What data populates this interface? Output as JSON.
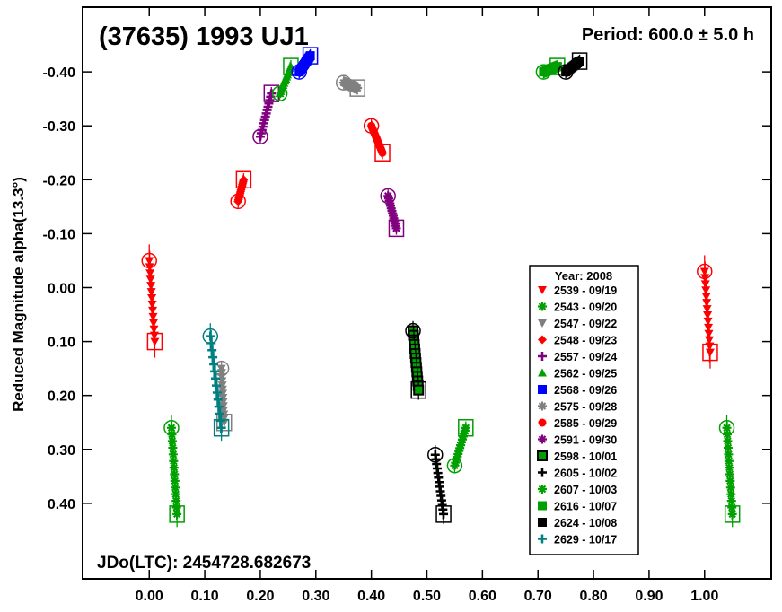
{
  "chart_data": {
    "type": "scatter",
    "title": "(37635) 1993 UJ1",
    "period_label": "Period: 600.0 ± 5.0 h",
    "epoch_label": "JDo(LTC): 2454728.682673",
    "ylabel": "Reduced Magnitude alpha(13.3°)",
    "xlabel": "",
    "xlim": [
      -0.12,
      1.12
    ],
    "ylim": [
      -0.52,
      0.54
    ],
    "y_inverted": true,
    "grid": false,
    "legend_position": "bottom-right",
    "legend_title": "Year: 2008",
    "x_ticks": [
      {
        "v": 0.0,
        "label": "0.00"
      },
      {
        "v": 0.1,
        "label": "0.10"
      },
      {
        "v": 0.2,
        "label": "0.20"
      },
      {
        "v": 0.3,
        "label": "0.30"
      },
      {
        "v": 0.4,
        "label": "0.40"
      },
      {
        "v": 0.5,
        "label": "0.50"
      },
      {
        "v": 0.6,
        "label": "0.60"
      },
      {
        "v": 0.7,
        "label": "0.70"
      },
      {
        "v": 0.8,
        "label": "0.80"
      },
      {
        "v": 0.9,
        "label": "0.90"
      },
      {
        "v": 1.0,
        "label": "1.00"
      }
    ],
    "y_ticks": [
      {
        "v": -0.4,
        "label": "-0.40"
      },
      {
        "v": -0.3,
        "label": "-0.30"
      },
      {
        "v": -0.2,
        "label": "-0.20"
      },
      {
        "v": -0.1,
        "label": "-0.10"
      },
      {
        "v": 0.0,
        "label": "0.00"
      },
      {
        "v": 0.1,
        "label": "0.10"
      },
      {
        "v": 0.2,
        "label": "0.20"
      },
      {
        "v": 0.3,
        "label": "0.30"
      },
      {
        "v": 0.4,
        "label": "0.40"
      }
    ],
    "series": [
      {
        "name": "2539 - 09/19",
        "color": "#ff0000",
        "marker": "triangle-down",
        "x": [
          0.0,
          0.01,
          1.0,
          1.01
        ],
        "y": [
          -0.05,
          0.1,
          -0.03,
          0.12
        ],
        "spread": 0.05
      },
      {
        "name": "2543 - 09/20",
        "color": "#00a000",
        "marker": "asterisk",
        "x": [
          0.04,
          0.05,
          1.04,
          1.05
        ],
        "y": [
          0.26,
          0.42,
          0.26,
          0.42
        ],
        "spread": 0.04
      },
      {
        "name": "2547 - 09/22",
        "color": "#808080",
        "marker": "triangle-down",
        "x": [
          0.13,
          0.135
        ],
        "y": [
          0.15,
          0.25
        ],
        "spread": 0.02
      },
      {
        "name": "2548 - 09/23",
        "color": "#ff0000",
        "marker": "diamond",
        "x": [
          0.16,
          0.17
        ],
        "y": [
          -0.16,
          -0.2
        ],
        "spread": 0.02
      },
      {
        "name": "2557 - 09/24",
        "color": "#800080",
        "marker": "plus",
        "x": [
          0.2,
          0.22
        ],
        "y": [
          -0.28,
          -0.36
        ],
        "spread": 0.02
      },
      {
        "name": "2562 - 09/25",
        "color": "#00a000",
        "marker": "triangle-up",
        "x": [
          0.235,
          0.255
        ],
        "y": [
          -0.36,
          -0.41
        ],
        "spread": 0.02
      },
      {
        "name": "2568 - 09/26",
        "color": "#0000ff",
        "marker": "square",
        "x": [
          0.27,
          0.29
        ],
        "y": [
          -0.4,
          -0.43
        ],
        "spread": 0.02
      },
      {
        "name": "2575 - 09/28",
        "color": "#808080",
        "marker": "asterisk",
        "x": [
          0.35,
          0.375
        ],
        "y": [
          -0.38,
          -0.37
        ],
        "spread": 0.02
      },
      {
        "name": "2585 - 09/29",
        "color": "#ff0000",
        "marker": "circle",
        "x": [
          0.4,
          0.42
        ],
        "y": [
          -0.3,
          -0.25
        ],
        "spread": 0.02
      },
      {
        "name": "2591 - 09/30",
        "color": "#800080",
        "marker": "asterisk",
        "x": [
          0.43,
          0.445
        ],
        "y": [
          -0.17,
          -0.11
        ],
        "spread": 0.02
      },
      {
        "name": "2598 - 10/01",
        "color": "#000000",
        "marker": "filled-square-green",
        "x": [
          0.475,
          0.485
        ],
        "y": [
          0.08,
          0.19
        ],
        "spread": 0.03
      },
      {
        "name": "2605 - 10/02",
        "color": "#000000",
        "marker": "plus",
        "x": [
          0.515,
          0.53
        ],
        "y": [
          0.31,
          0.42
        ],
        "spread": 0.03
      },
      {
        "name": "2607 - 10/03",
        "color": "#00a000",
        "marker": "asterisk",
        "x": [
          0.55,
          0.57
        ],
        "y": [
          0.33,
          0.26
        ],
        "spread": 0.02
      },
      {
        "name": "2616 - 10/07",
        "color": "#00a000",
        "marker": "square",
        "x": [
          0.71,
          0.735
        ],
        "y": [
          -0.4,
          -0.41
        ],
        "spread": 0.02
      },
      {
        "name": "2624 - 10/08",
        "color": "#000000",
        "marker": "square",
        "x": [
          0.75,
          0.775
        ],
        "y": [
          -0.4,
          -0.42
        ],
        "spread": 0.02
      },
      {
        "name": "2629 - 10/17",
        "color": "#008080",
        "marker": "plus",
        "x": [
          0.11,
          0.13
        ],
        "y": [
          0.09,
          0.26
        ],
        "spread": 0.04
      }
    ]
  }
}
